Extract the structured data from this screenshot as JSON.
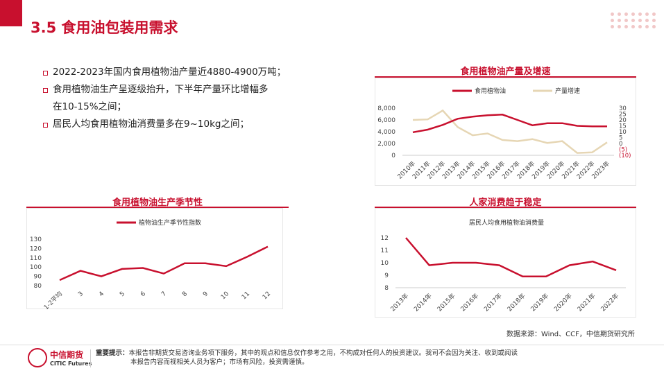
{
  "page": {
    "title": "3.5 食用油包装用需求"
  },
  "bullets": [
    "2022-2023年国内食用植物油产量近4880-4900万吨；",
    "食用植物油生产呈逐级抬升，下半年产量环比增幅多",
    "在10-15%之间；",
    "居民人均食用植物油消费量多在9~10kg之间；"
  ],
  "source": "数据来源：Wind、CCF，中信期货研究所",
  "footer": {
    "logo_cn": "中信期货",
    "logo_en": "CITIC Futures",
    "disclaimer_label": "重要提示：",
    "disclaimer_line1": "本报告非期货交易咨询业务项下服务，其中的观点和信息仅作参考之用，不构成对任何人的投资建议。我司不会因为关注、收到或阅读",
    "disclaimer_line2": "本报告内容而视相关人员为客户；市场有风险，投资需谨慎。"
  },
  "colors": {
    "accent": "#c8102e",
    "secondary": "#e6d6b4"
  },
  "chart_data": [
    {
      "type": "line",
      "title": "食用植物油产量及增速",
      "categories": [
        "2010年",
        "2011年",
        "2012年",
        "2013年",
        "2014年",
        "2015年",
        "2016年",
        "2017年",
        "2018年",
        "2019年",
        "2020年",
        "2021年",
        "2022年",
        "2023年"
      ],
      "series": [
        {
          "name": "食用植物油",
          "axis": "left",
          "values": [
            3900,
            4350,
            5150,
            6200,
            6550,
            6800,
            6900,
            6000,
            5100,
            5450,
            5450,
            5000,
            4900,
            4900
          ]
        },
        {
          "name": "产量增速",
          "axis": "right",
          "values": [
            20,
            20.5,
            28,
            14,
            7,
            8.5,
            3,
            2,
            3.7,
            0.5,
            2,
            -8,
            -7.5,
            1
          ]
        }
      ],
      "yticks_left": [
        "8,000",
        "6,000",
        "4,000",
        "2,000",
        "0"
      ],
      "ylim_left": [
        0,
        8000
      ],
      "yticks_right": [
        "30",
        "25",
        "20",
        "15",
        "10",
        "5",
        "0",
        "(5)",
        "(10)"
      ],
      "ylim_right": [
        -10,
        30
      ]
    },
    {
      "type": "line",
      "title": "食用植物油生产季节性",
      "categories": [
        "1-2平均",
        "3",
        "4",
        "5",
        "6",
        "7",
        "8",
        "9",
        "10",
        "11",
        "12"
      ],
      "series": [
        {
          "name": "植物油生产季节性指数",
          "values": [
            86,
            96,
            90,
            98,
            99,
            93,
            104,
            104,
            101,
            111,
            122
          ]
        }
      ],
      "yticks": [
        "130",
        "120",
        "110",
        "100",
        "90",
        "80"
      ],
      "ylim": [
        80,
        130
      ]
    },
    {
      "type": "line",
      "title": "人家消费趋于稳定",
      "subtitle": "居民人均食用植物油消费量",
      "categories": [
        "2013年",
        "2014年",
        "2015年",
        "2016年",
        "2017年",
        "2018年",
        "2019年",
        "2020年",
        "2021年",
        "2022年"
      ],
      "series": [
        {
          "values": [
            12,
            9.8,
            10,
            10,
            9.8,
            8.9,
            8.9,
            9.8,
            10.1,
            9.4
          ]
        }
      ],
      "yticks": [
        "12",
        "11",
        "10",
        "9",
        "8"
      ],
      "ylim": [
        8,
        12
      ]
    }
  ]
}
